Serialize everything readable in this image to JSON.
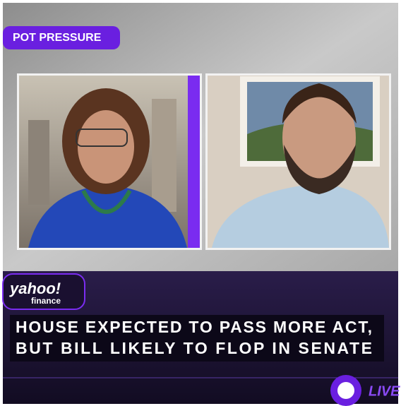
{
  "segment_label": "POT PRESSURE",
  "logo": {
    "brand": "yahoo!",
    "sub": "finance"
  },
  "headline": {
    "line1": "HOUSE EXPECTED TO PASS MORE ACT,",
    "line2": "BUT BILL LIKELY TO FLOP IN SENATE"
  },
  "live_badge": "LIVE"
}
